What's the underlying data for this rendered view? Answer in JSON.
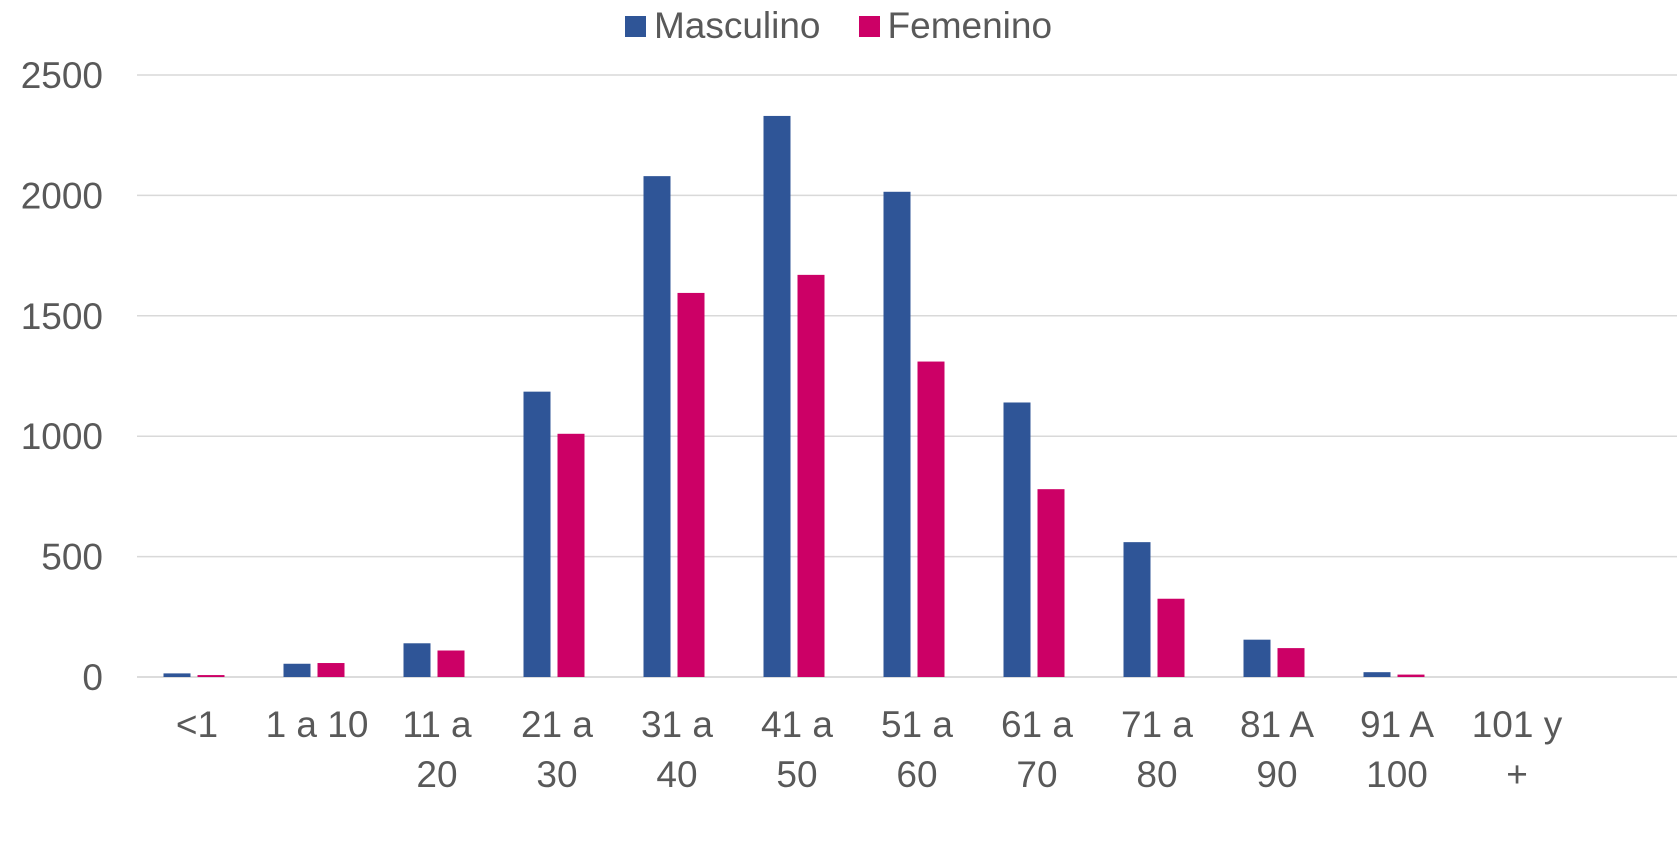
{
  "chart_data": {
    "type": "bar",
    "title": "",
    "xlabel": "",
    "ylabel": "",
    "categories": [
      [
        "<1"
      ],
      [
        "1 a 10"
      ],
      [
        "11 a",
        "20"
      ],
      [
        "21 a",
        "30"
      ],
      [
        "31 a",
        "40"
      ],
      [
        "41 a",
        "50"
      ],
      [
        "51 a",
        "60"
      ],
      [
        "61 a",
        "70"
      ],
      [
        "71 a",
        "80"
      ],
      [
        "81 A",
        "90"
      ],
      [
        "91 A",
        "100"
      ],
      [
        "101 y",
        "+"
      ]
    ],
    "series": [
      {
        "name": "Masculino",
        "color": "#2F5597",
        "values": [
          15,
          55,
          140,
          1185,
          2080,
          2330,
          2015,
          1140,
          560,
          155,
          20,
          0
        ]
      },
      {
        "name": "Femenino",
        "color": "#CC0066",
        "values": [
          8,
          58,
          110,
          1010,
          1595,
          1670,
          1310,
          780,
          325,
          120,
          10,
          0
        ]
      }
    ],
    "ylim": [
      0,
      2500
    ],
    "yticks": [
      0,
      500,
      1000,
      1500,
      2000,
      2500
    ],
    "grid": true,
    "legend_position": "top"
  }
}
